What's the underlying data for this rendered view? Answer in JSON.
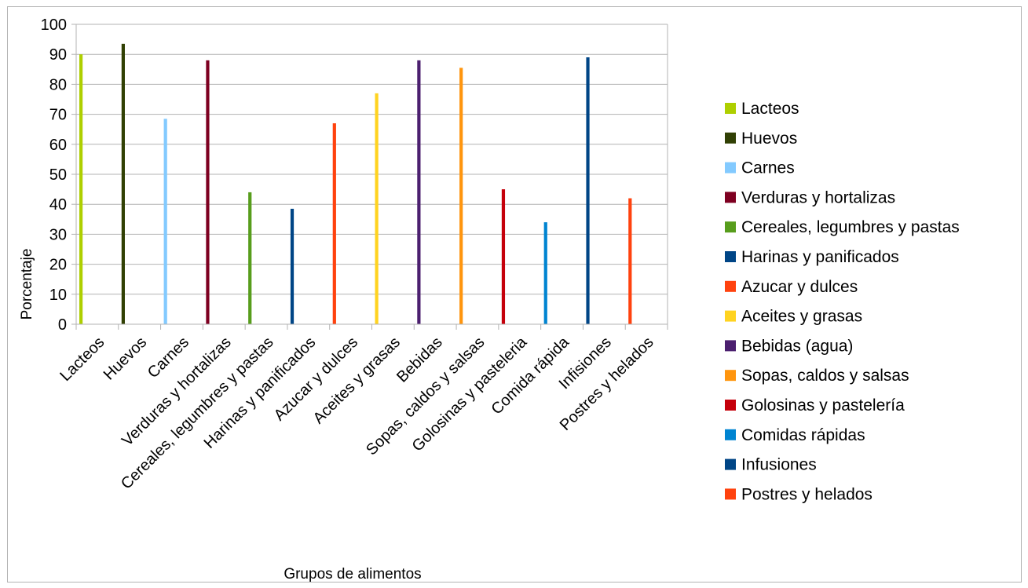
{
  "chart_data": {
    "type": "bar",
    "title": "",
    "xlabel": "Grupos de alimentos",
    "ylabel": "Porcentaje",
    "ylim": [
      0,
      100
    ],
    "yticks": [
      0,
      10,
      20,
      30,
      40,
      50,
      60,
      70,
      80,
      90,
      100
    ],
    "grid": true,
    "legend_position": "right",
    "categories": [
      "Lacteos",
      "Huevos",
      "Carnes",
      "Verduras y hortalizas",
      "Cereales, legumbres y pastas",
      "Harinas y panificados",
      "Azucar y dulces",
      "Aceites y grasas",
      "Bebidas",
      "Sopas, caldos y salsas",
      "Golosinas y pasteleria",
      "Comida rápida",
      "Infisiones",
      "Postres y helados"
    ],
    "series": [
      {
        "name": "Lacteos",
        "values": [
          90,
          null,
          null,
          null,
          null,
          null,
          null,
          null,
          null,
          null,
          null,
          null,
          null,
          null
        ],
        "color": "#aecf00"
      },
      {
        "name": "Huevos",
        "values": [
          null,
          93.5,
          null,
          null,
          null,
          null,
          null,
          null,
          null,
          null,
          null,
          null,
          null,
          null
        ],
        "color": "#314004"
      },
      {
        "name": "Carnes",
        "values": [
          null,
          null,
          68.5,
          null,
          null,
          null,
          null,
          null,
          null,
          null,
          null,
          null,
          null,
          null
        ],
        "color": "#83caff"
      },
      {
        "name": "Verduras y hortalizas",
        "values": [
          null,
          null,
          null,
          88,
          null,
          null,
          null,
          null,
          null,
          null,
          null,
          null,
          null,
          null
        ],
        "color": "#7e0021"
      },
      {
        "name": "Cereales, legumbres y pastas",
        "values": [
          null,
          null,
          null,
          null,
          44,
          null,
          null,
          null,
          null,
          null,
          null,
          null,
          null,
          null
        ],
        "color": "#579d1c"
      },
      {
        "name": "Harinas y panificados",
        "values": [
          null,
          null,
          null,
          null,
          null,
          38.5,
          null,
          null,
          null,
          null,
          null,
          null,
          null,
          null
        ],
        "color": "#004586"
      },
      {
        "name": "Azucar y dulces",
        "values": [
          null,
          null,
          null,
          null,
          null,
          null,
          67,
          null,
          null,
          null,
          null,
          null,
          null,
          null
        ],
        "color": "#ff420e"
      },
      {
        "name": "Aceites y grasas",
        "values": [
          null,
          null,
          null,
          null,
          null,
          null,
          null,
          77,
          null,
          null,
          null,
          null,
          null,
          null
        ],
        "color": "#ffd320"
      },
      {
        "name": "Bebidas (agua)",
        "values": [
          null,
          null,
          null,
          null,
          null,
          null,
          null,
          null,
          88,
          null,
          null,
          null,
          null,
          null
        ],
        "color": "#4b1f6f"
      },
      {
        "name": "Sopas, caldos y salsas",
        "values": [
          null,
          null,
          null,
          null,
          null,
          null,
          null,
          null,
          null,
          85.5,
          null,
          null,
          null,
          null
        ],
        "color": "#ff950e"
      },
      {
        "name": "Golosinas y pastelería",
        "values": [
          null,
          null,
          null,
          null,
          null,
          null,
          null,
          null,
          null,
          null,
          45,
          null,
          null,
          null
        ],
        "color": "#c5000b"
      },
      {
        "name": "Comidas rápidas",
        "values": [
          null,
          null,
          null,
          null,
          null,
          null,
          null,
          null,
          null,
          null,
          null,
          34,
          null,
          null
        ],
        "color": "#0084d1"
      },
      {
        "name": "Infusiones",
        "values": [
          null,
          null,
          null,
          null,
          null,
          null,
          null,
          null,
          null,
          null,
          null,
          null,
          89,
          null
        ],
        "color": "#004586"
      },
      {
        "name": "Postres y helados",
        "values": [
          null,
          null,
          null,
          null,
          null,
          null,
          null,
          null,
          null,
          null,
          null,
          null,
          null,
          42
        ],
        "color": "#ff420e"
      }
    ]
  }
}
